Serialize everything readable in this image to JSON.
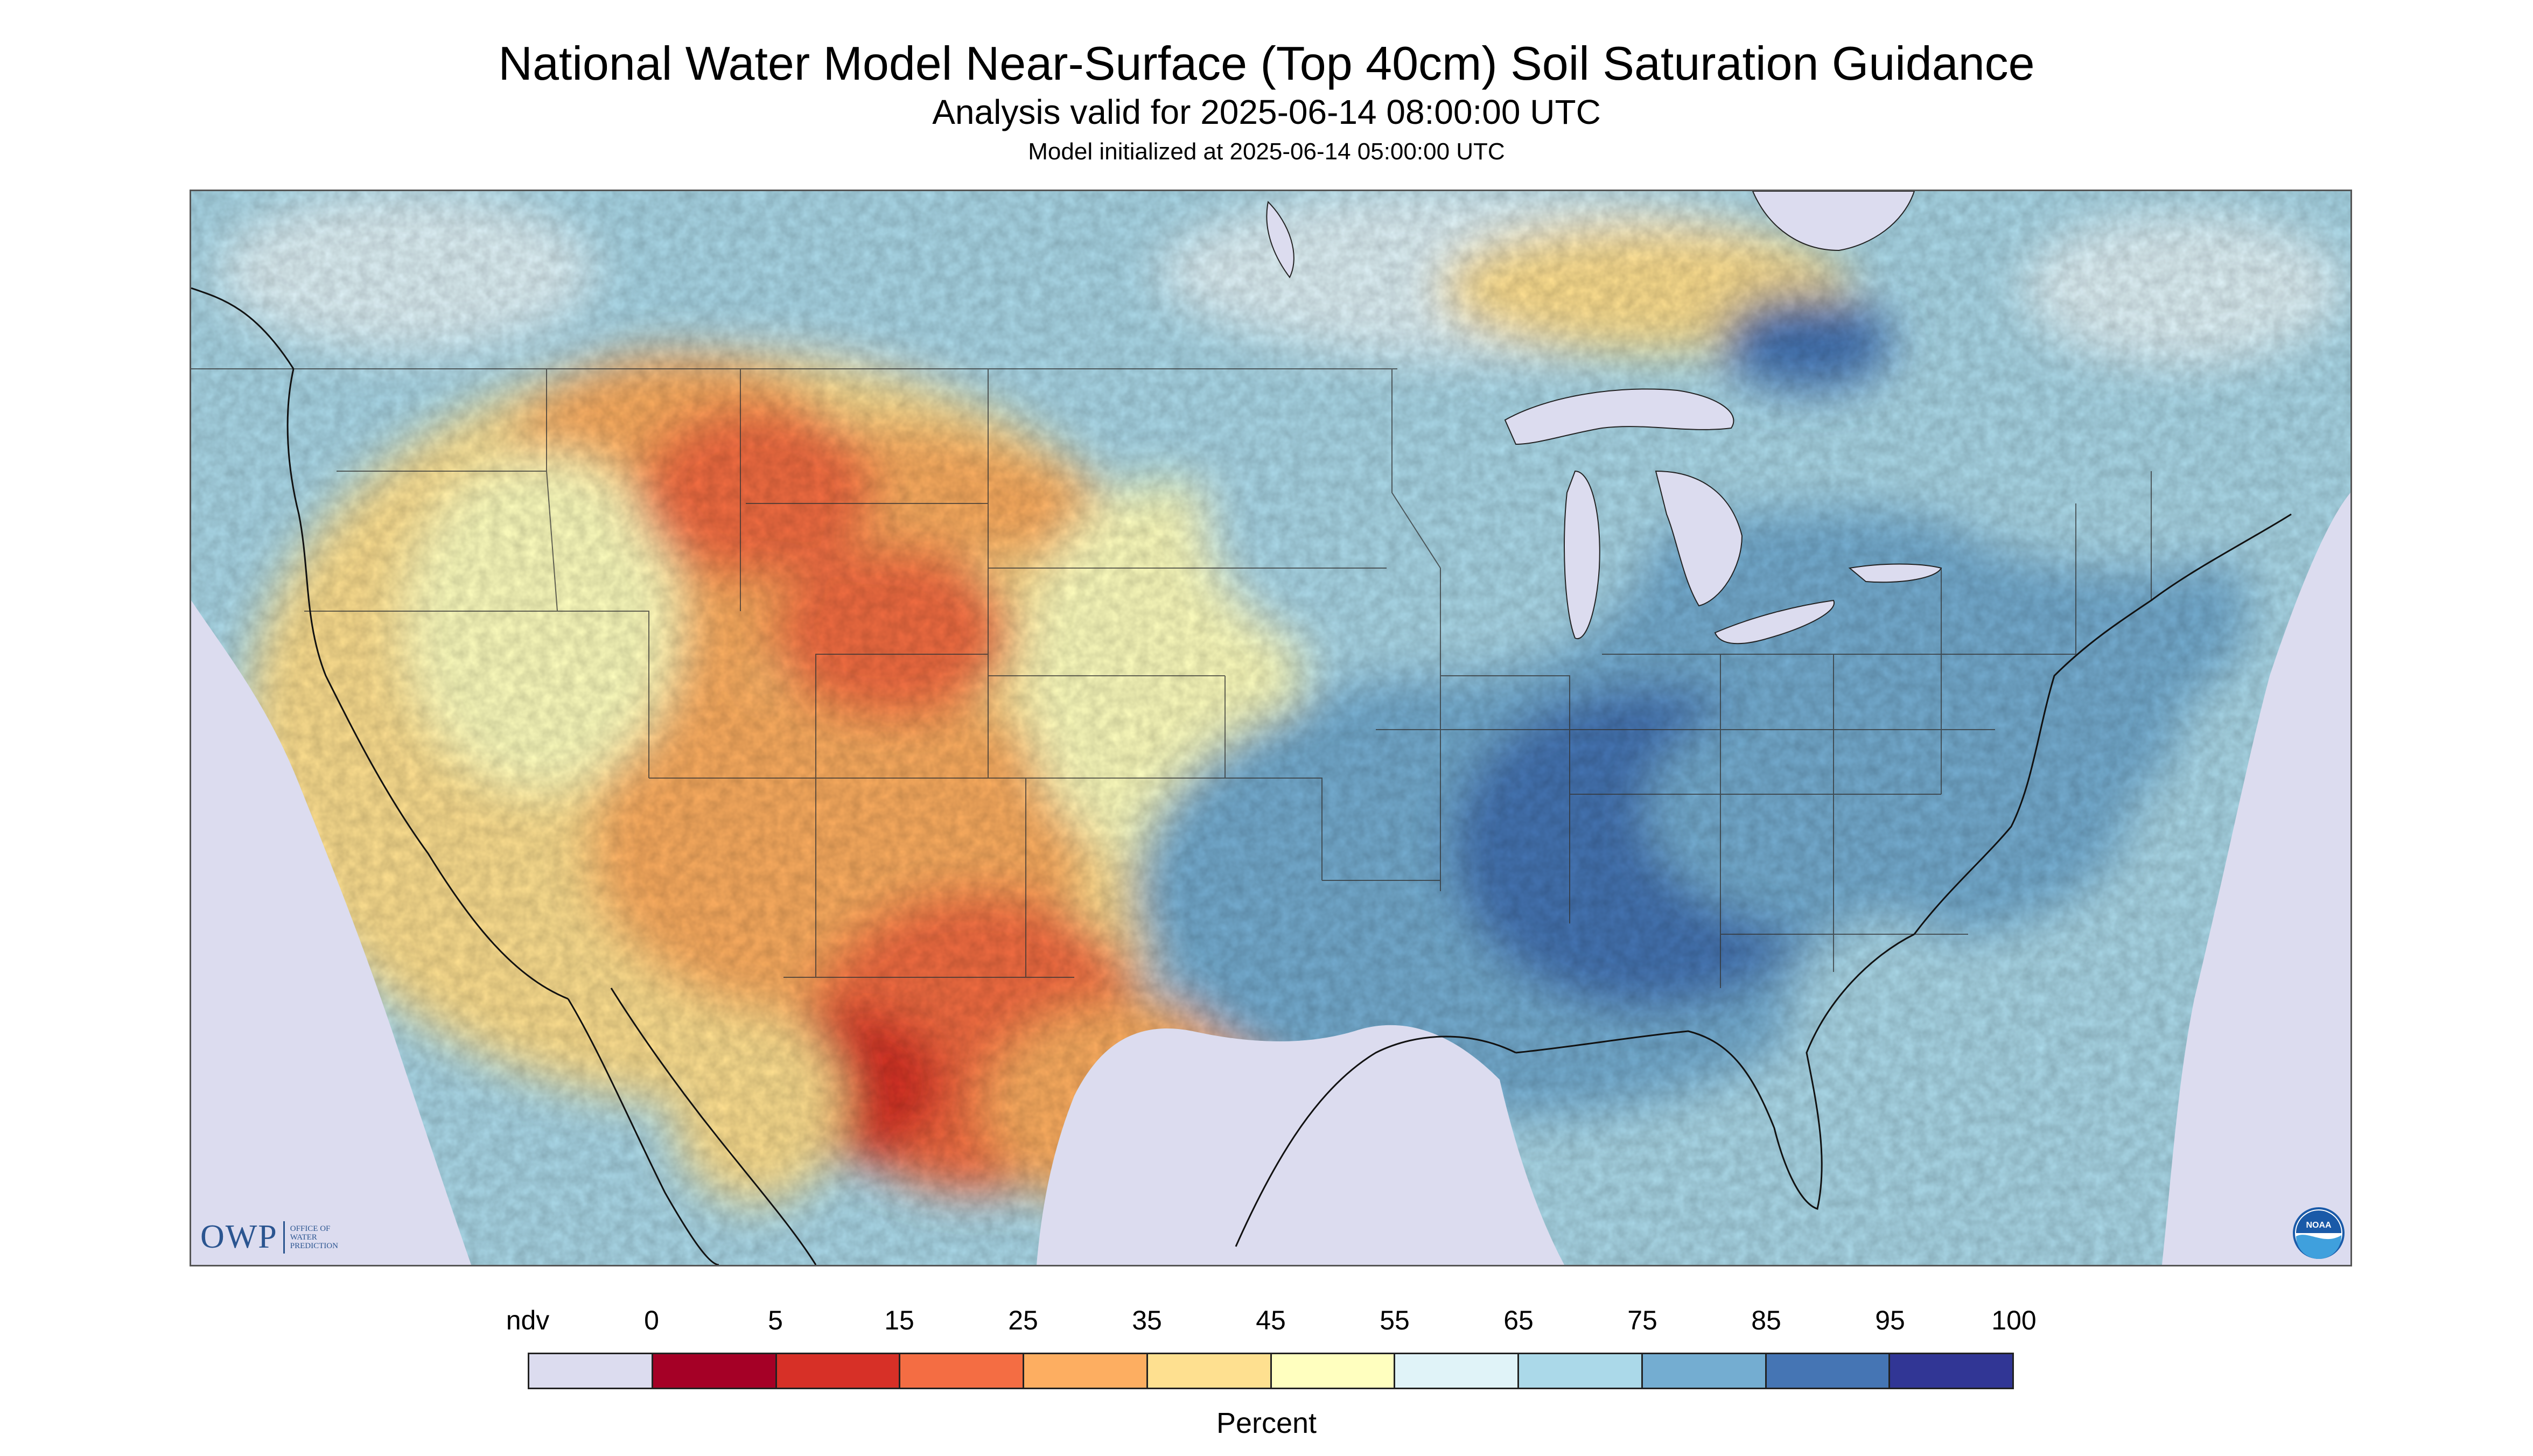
{
  "header": {
    "title": "National Water Model Near-Surface (Top 40cm) Soil Saturation Guidance",
    "subtitle": "Analysis valid for 2025-06-14 08:00:00 UTC",
    "model_init": "Model initialized at 2025-06-14 05:00:00 UTC"
  },
  "logos": {
    "owp_text": "OWP",
    "owp_sub": [
      "OFFICE OF",
      "WATER",
      "PREDICTION"
    ],
    "noaa_text": "NOAA"
  },
  "legend": {
    "units": "Percent",
    "labels": [
      "ndv",
      "0",
      "5",
      "15",
      "25",
      "35",
      "45",
      "55",
      "65",
      "75",
      "85",
      "95",
      "100"
    ],
    "colors": [
      "#dcdcef",
      "#a50026",
      "#d73027",
      "#f46d43",
      "#fdae61",
      "#fee090",
      "#ffffbf",
      "#e0f3f8",
      "#abd9e9",
      "#74add1",
      "#4575b4",
      "#313695"
    ]
  },
  "map": {
    "background_color": "#dcdcef",
    "water_color": "#dcdcef",
    "noaa_color": "#1a5aa8"
  }
}
